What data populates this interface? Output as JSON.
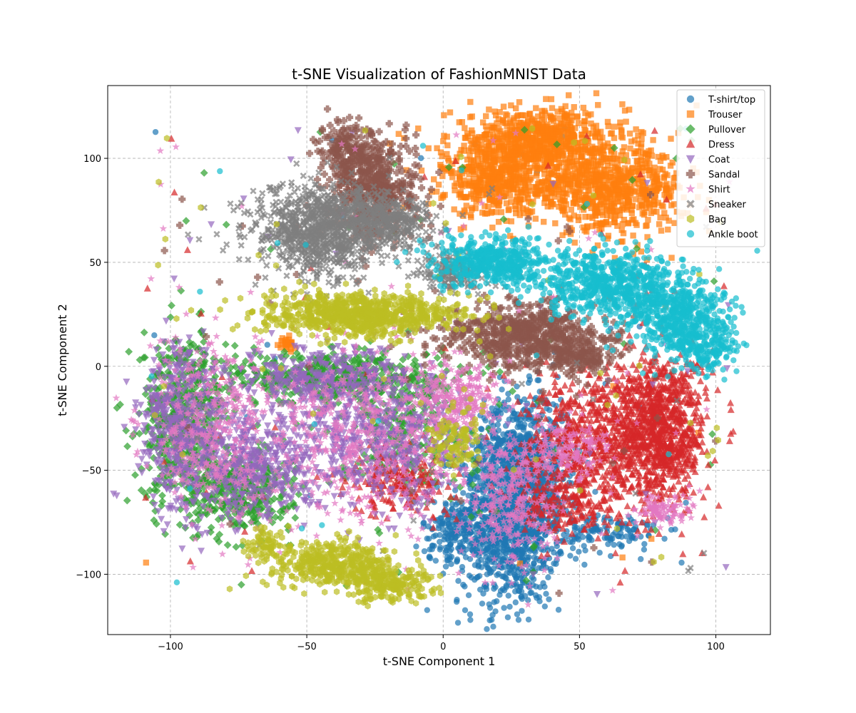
{
  "chart_data": {
    "type": "scatter",
    "title": "t-SNE Visualization of FashionMNIST Data",
    "xlabel": "t-SNE Component 1",
    "ylabel": "t-SNE Component 2",
    "xlim": [
      -123,
      120
    ],
    "ylim": [
      -129,
      135
    ],
    "xticks": [
      -100,
      -50,
      0,
      50,
      100
    ],
    "yticks": [
      -100,
      -50,
      0,
      50,
      100
    ],
    "xtick_labels": [
      "−100",
      "−50",
      "0",
      "50",
      "100"
    ],
    "ytick_labels": [
      "−100",
      "−50",
      "0",
      "50",
      "100"
    ],
    "grid": true,
    "legend_position": "top-right",
    "series": [
      {
        "name": "T-shirt/top",
        "color": "#1f77b4",
        "marker": "circle",
        "clusters": [
          [
            25,
            -70,
            12,
            28,
            1300
          ],
          [
            30,
            -45,
            10,
            20,
            500
          ],
          [
            60,
            -80,
            12,
            6,
            120
          ],
          [
            5,
            -80,
            8,
            10,
            150
          ]
        ],
        "scattered": 40
      },
      {
        "name": "Trouser",
        "color": "#ff7f0e",
        "marker": "square",
        "clusters": [
          [
            35,
            108,
            20,
            10,
            700
          ],
          [
            60,
            85,
            18,
            12,
            700
          ],
          [
            20,
            88,
            12,
            10,
            400
          ],
          [
            -57,
            11,
            2,
            2,
            25
          ]
        ],
        "scattered": 10
      },
      {
        "name": "Pullover",
        "color": "#2ca02c",
        "marker": "diamond",
        "clusters": [
          [
            -95,
            -25,
            10,
            25,
            500
          ],
          [
            -75,
            -60,
            12,
            12,
            350
          ],
          [
            -40,
            -5,
            25,
            8,
            450
          ],
          [
            -15,
            -30,
            15,
            20,
            250
          ]
        ],
        "scattered": 60
      },
      {
        "name": "Dress",
        "color": "#d62728",
        "marker": "triangle-up",
        "clusters": [
          [
            80,
            -30,
            10,
            22,
            900
          ],
          [
            55,
            -35,
            15,
            20,
            600
          ],
          [
            45,
            -65,
            12,
            10,
            200
          ],
          [
            -15,
            -55,
            12,
            10,
            200
          ]
        ],
        "scattered": 60
      },
      {
        "name": "Coat",
        "color": "#9467bd",
        "marker": "triangle-down",
        "clusters": [
          [
            -95,
            -30,
            10,
            25,
            500
          ],
          [
            -70,
            -50,
            12,
            15,
            350
          ],
          [
            -25,
            -35,
            22,
            20,
            600
          ],
          [
            -45,
            -5,
            20,
            8,
            300
          ]
        ],
        "scattered": 50
      },
      {
        "name": "Sandal",
        "color": "#8c564b",
        "marker": "plus",
        "clusters": [
          [
            -25,
            85,
            10,
            15,
            500
          ],
          [
            -35,
            105,
            6,
            8,
            150
          ],
          [
            30,
            15,
            18,
            10,
            550
          ],
          [
            50,
            5,
            8,
            6,
            150
          ]
        ],
        "scattered": 40
      },
      {
        "name": "Shirt",
        "color": "#e377c2",
        "marker": "star",
        "clusters": [
          [
            -85,
            -30,
            15,
            25,
            350
          ],
          [
            -30,
            -35,
            25,
            25,
            500
          ],
          [
            5,
            -15,
            10,
            10,
            250
          ],
          [
            25,
            -65,
            10,
            20,
            300
          ],
          [
            45,
            -40,
            10,
            10,
            150
          ],
          [
            80,
            -70,
            6,
            5,
            100
          ]
        ],
        "scattered": 80
      },
      {
        "name": "Sneaker",
        "color": "#7f7f7f",
        "marker": "x",
        "clusters": [
          [
            -45,
            65,
            15,
            14,
            900
          ],
          [
            -20,
            70,
            10,
            8,
            300
          ],
          [
            5,
            45,
            8,
            6,
            150
          ]
        ],
        "scattered": 30
      },
      {
        "name": "Bag",
        "color": "#bcbd22",
        "marker": "hexagon",
        "clusters": [
          [
            -30,
            25,
            22,
            6,
            800
          ],
          [
            -40,
            -95,
            15,
            7,
            400
          ],
          [
            -20,
            -105,
            10,
            5,
            200
          ],
          [
            -65,
            -85,
            5,
            5,
            60
          ],
          [
            5,
            -35,
            6,
            10,
            100
          ]
        ],
        "scattered": 60
      },
      {
        "name": "Ankle boot",
        "color": "#17becf",
        "marker": "circle",
        "clusters": [
          [
            20,
            50,
            14,
            7,
            500
          ],
          [
            60,
            40,
            15,
            10,
            600
          ],
          [
            85,
            25,
            12,
            12,
            500
          ],
          [
            95,
            10,
            8,
            8,
            200
          ]
        ],
        "scattered": 20
      }
    ]
  }
}
